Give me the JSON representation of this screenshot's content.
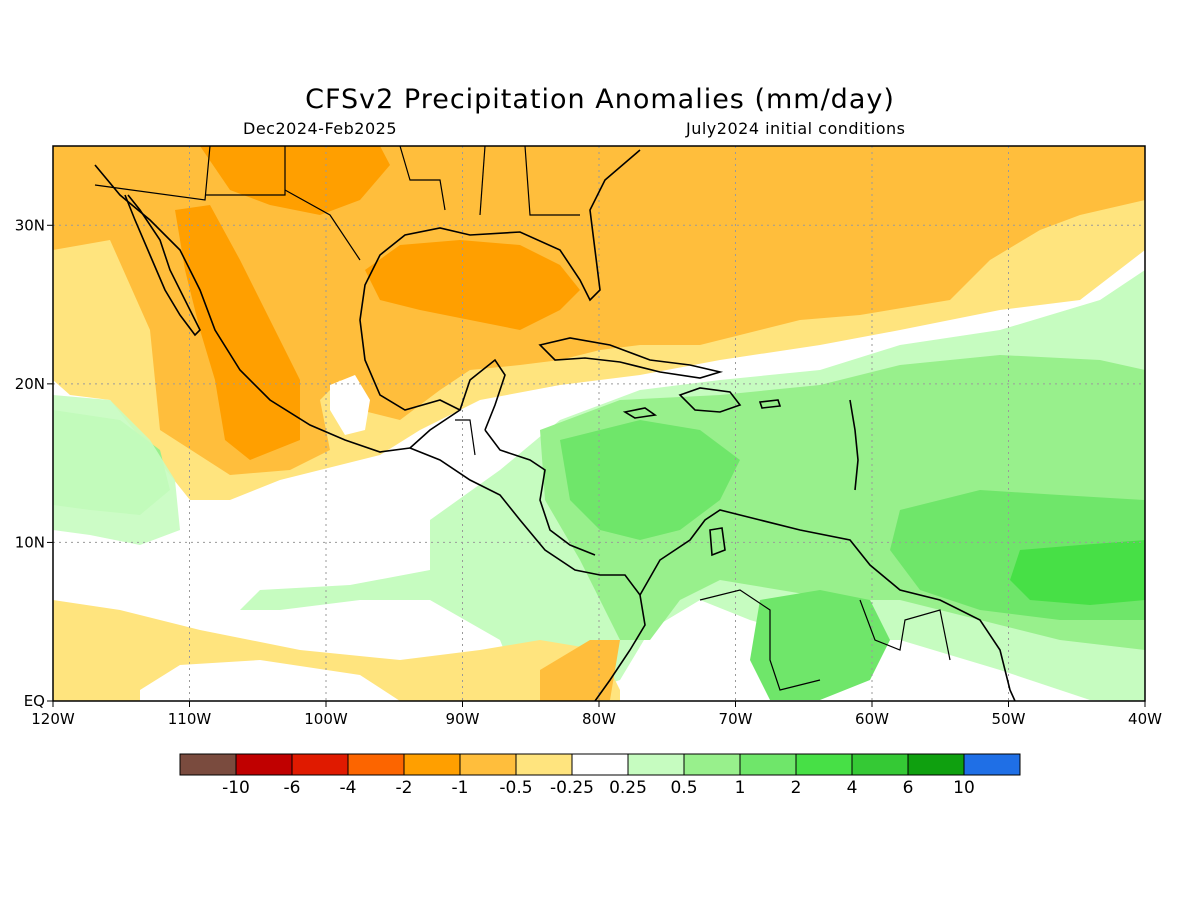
{
  "title": "CFSv2 Precipitation Anomalies (mm/day)",
  "period": "Dec2024-Feb2025",
  "initial_conditions": "July2024 initial conditions",
  "map": {
    "lon_range": [
      -120,
      -40
    ],
    "lat_range": [
      0,
      35
    ],
    "lon_ticks": [
      {
        "v": -120,
        "label": "120W"
      },
      {
        "v": -110,
        "label": "110W"
      },
      {
        "v": -100,
        "label": "100W"
      },
      {
        "v": -90,
        "label": "90W"
      },
      {
        "v": -80,
        "label": "80W"
      },
      {
        "v": -70,
        "label": "70W"
      },
      {
        "v": -60,
        "label": "60W"
      },
      {
        "v": -50,
        "label": "50W"
      },
      {
        "v": -40,
        "label": "40W"
      }
    ],
    "lat_ticks": [
      {
        "v": 0,
        "label": "EQ"
      },
      {
        "v": 10,
        "label": "10N"
      },
      {
        "v": 20,
        "label": "20N"
      },
      {
        "v": 30,
        "label": "30N"
      }
    ]
  },
  "colorbar": {
    "colors": [
      "#7a4b3e",
      "#c00000",
      "#e01a00",
      "#fc6500",
      "#ff9f00",
      "#ffbe3c",
      "#ffe47e",
      "#ffffff",
      "#c6fcc0",
      "#98f08c",
      "#6fe66a",
      "#47e046",
      "#35c935",
      "#0fa00f",
      "#1f6fe6"
    ],
    "labels": [
      "-10",
      "-6",
      "-4",
      "-2",
      "-1",
      "-0.5",
      "-0.25",
      "0.25",
      "0.5",
      "1",
      "2",
      "4",
      "6",
      "10"
    ]
  }
}
